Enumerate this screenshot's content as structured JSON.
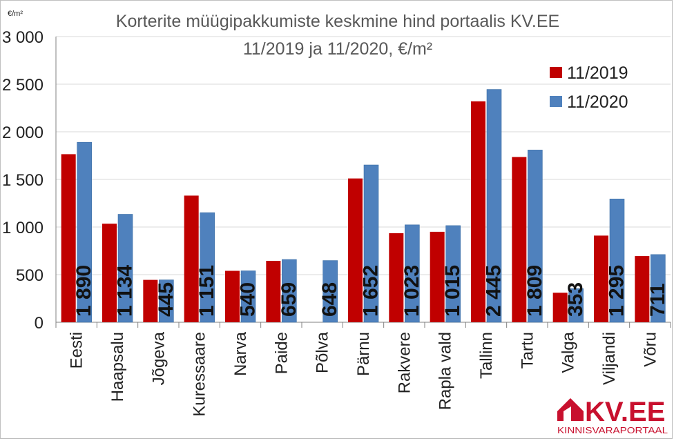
{
  "chart_data": {
    "type": "bar",
    "title_line1": "Korterite müügipakkumiste keskmine hind portaalis KV.EE",
    "title_line2": "11/2019 ja 11/2020, €/m²",
    "unit_label": "€/m²",
    "categories": [
      "Eesti",
      "Haapsalu",
      "Jõgeva",
      "Kuressaare",
      "Narva",
      "Paide",
      "Põlva",
      "Pärnu",
      "Rakvere",
      "Rapla vald",
      "Tallinn",
      "Tartu",
      "Valga",
      "Viljandi",
      "Võru"
    ],
    "series": [
      {
        "name": "11/2019",
        "color": "#c00000",
        "values": [
          1765,
          1035,
          445,
          1330,
          540,
          645,
          0,
          1510,
          935,
          950,
          2320,
          1735,
          310,
          910,
          695
        ]
      },
      {
        "name": "11/2020",
        "color": "#4f81bd",
        "values": [
          1890,
          1134,
          445,
          1151,
          540,
          659,
          648,
          1652,
          1023,
          1015,
          2445,
          1809,
          353,
          1295,
          711
        ]
      }
    ],
    "data_labels": [
      "1 890",
      "1 134",
      "445",
      "1 151",
      "540",
      "659",
      "648",
      "1 652",
      "1 023",
      "1 015",
      "2 445",
      "1 809",
      "353",
      "1 295",
      "711"
    ],
    "yaxis_ticks": [
      "0",
      "500",
      "1 000",
      "1 500",
      "2 000",
      "2 500",
      "3 000"
    ],
    "ylim": [
      0,
      3000
    ],
    "grid": true,
    "legend_position": "top-right"
  },
  "logo": {
    "text": "KV.EE",
    "subtext": "KINNISVARAPORTAAL",
    "color": "#c8102e"
  }
}
